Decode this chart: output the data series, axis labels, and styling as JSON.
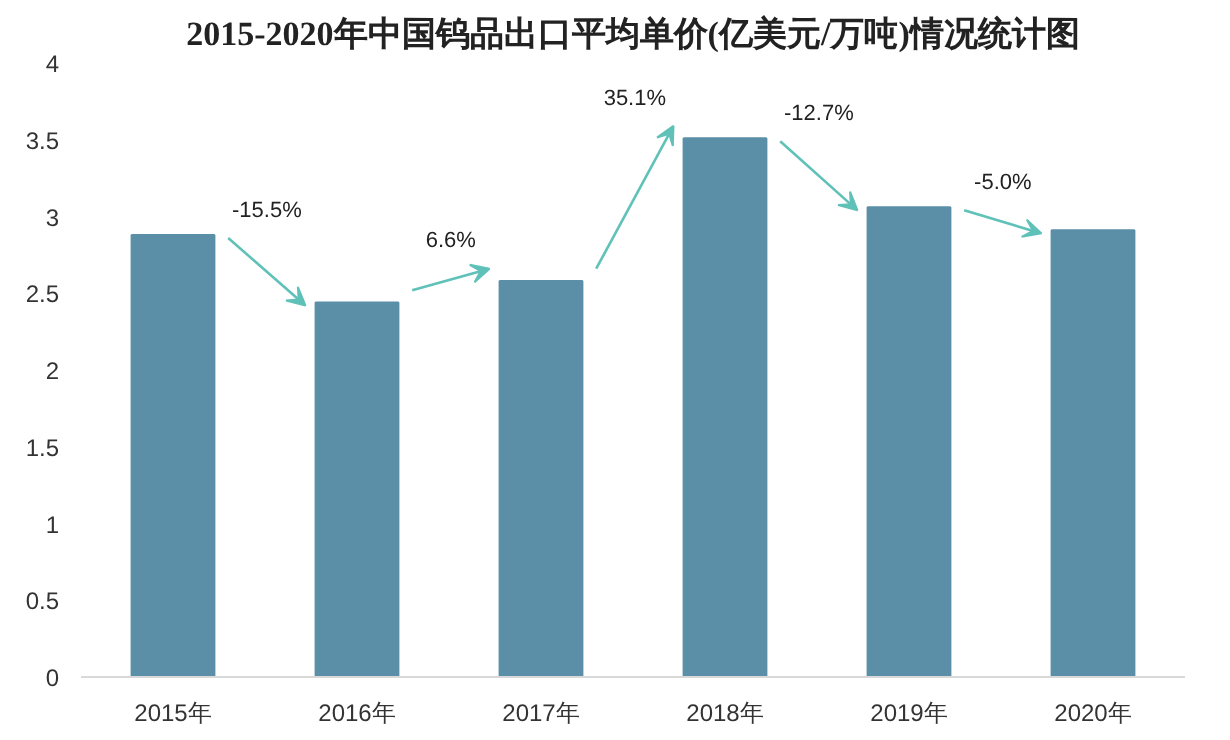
{
  "chart_data": {
    "type": "bar",
    "title": "2015-2020年中国钨品出口平均单价(亿美元/万吨)情况统计图",
    "categories": [
      "2015年",
      "2016年",
      "2017年",
      "2018年",
      "2019年",
      "2020年"
    ],
    "values": [
      2.88,
      2.44,
      2.58,
      3.51,
      3.06,
      2.91
    ],
    "color": "#5b8fa8",
    "ylim": [
      0,
      4
    ],
    "yticks": [
      0,
      0.5,
      1,
      1.5,
      2,
      2.5,
      3,
      3.5,
      4
    ],
    "grid": false,
    "annotations": [
      "-15.5%",
      "6.6%",
      "35.1%",
      "-12.7%",
      "-5.0%"
    ]
  }
}
